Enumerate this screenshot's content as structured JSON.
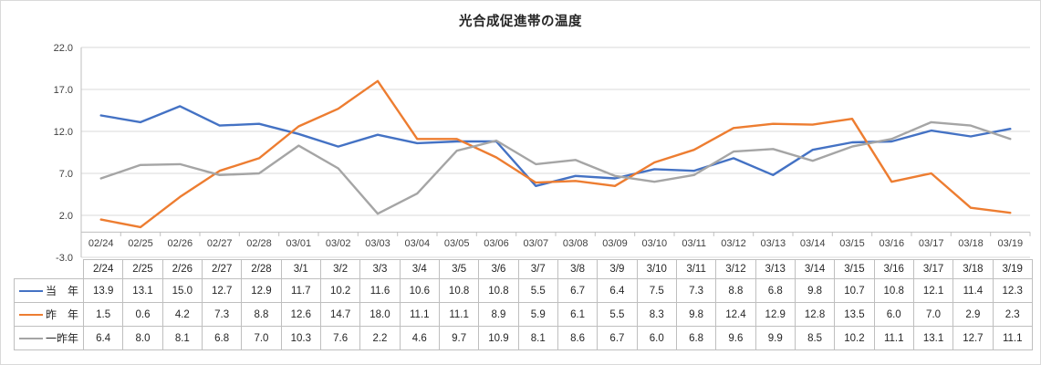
{
  "chart_data": {
    "type": "line",
    "title": "光合成促進帯の温度",
    "x_labels": [
      "02/24",
      "02/25",
      "02/26",
      "02/27",
      "02/28",
      "03/01",
      "03/02",
      "03/03",
      "03/04",
      "03/05",
      "03/06",
      "03/07",
      "03/08",
      "03/09",
      "03/10",
      "03/11",
      "03/12",
      "03/13",
      "03/14",
      "03/15",
      "03/16",
      "03/17",
      "03/18",
      "03/19"
    ],
    "table_headers": [
      "2/24",
      "2/25",
      "2/26",
      "2/27",
      "2/28",
      "3/1",
      "3/2",
      "3/3",
      "3/4",
      "3/5",
      "3/6",
      "3/7",
      "3/8",
      "3/9",
      "3/10",
      "3/11",
      "3/12",
      "3/13",
      "3/14",
      "3/15",
      "3/16",
      "3/17",
      "3/18",
      "3/19"
    ],
    "y_ticks": [
      22.0,
      17.0,
      12.0,
      7.0,
      2.0,
      -3.0
    ],
    "ylim": [
      -3.0,
      22.0
    ],
    "grid": true,
    "legend_position": "data-table-left",
    "series": [
      {
        "id": "current-year",
        "name": "当　年",
        "color": "#4472C4",
        "values": [
          13.9,
          13.1,
          15.0,
          12.7,
          12.9,
          11.7,
          10.2,
          11.6,
          10.6,
          10.8,
          10.8,
          5.5,
          6.7,
          6.4,
          7.5,
          7.3,
          8.8,
          6.8,
          9.8,
          10.7,
          10.8,
          12.1,
          11.4,
          12.3
        ]
      },
      {
        "id": "last-year",
        "name": "昨　年",
        "color": "#ED7D31",
        "values": [
          1.5,
          0.6,
          4.2,
          7.3,
          8.8,
          12.6,
          14.7,
          18.0,
          11.1,
          11.1,
          8.9,
          5.9,
          6.1,
          5.5,
          8.3,
          9.8,
          12.4,
          12.9,
          12.8,
          13.5,
          6.0,
          7.0,
          2.9,
          2.3
        ]
      },
      {
        "id": "two-years-ago",
        "name": "一昨年",
        "color": "#A5A5A5",
        "values": [
          6.4,
          8.0,
          8.1,
          6.8,
          7.0,
          10.3,
          7.6,
          2.2,
          4.6,
          9.7,
          10.9,
          8.1,
          8.6,
          6.7,
          6.0,
          6.8,
          9.6,
          9.9,
          8.5,
          10.2,
          11.1,
          13.1,
          12.7,
          11.1
        ]
      }
    ]
  },
  "colors": {
    "gridline": "#D9D9D9",
    "axis_line": "#BFBFBF",
    "table_border": "#BFBFBF",
    "text": "#262626",
    "axis_text": "#404040",
    "chart_border": "#D9D9D9",
    "background": "#FFFFFF"
  }
}
